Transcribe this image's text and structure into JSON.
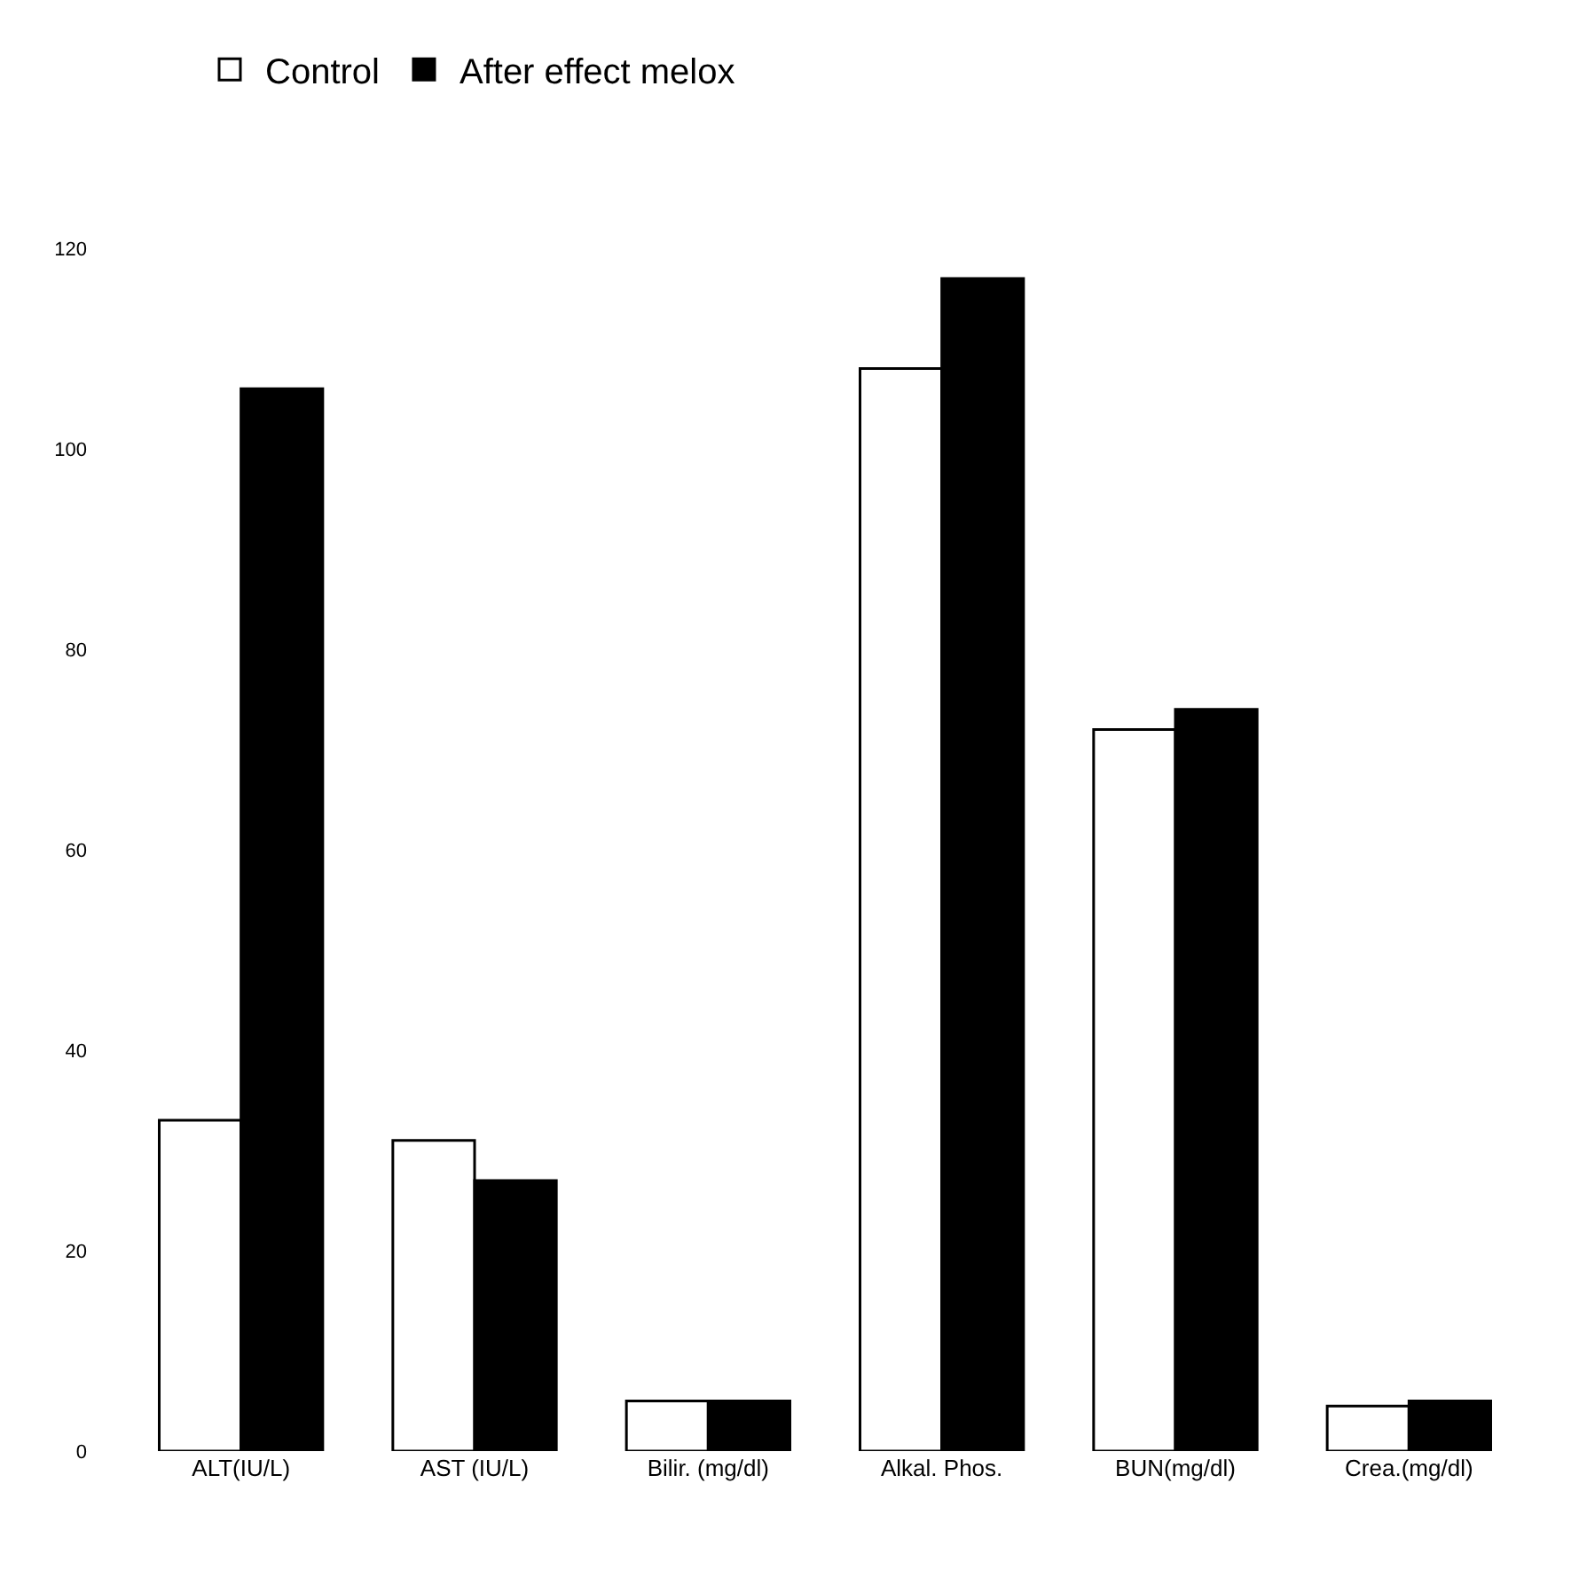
{
  "chart_data": {
    "type": "bar",
    "categories": [
      "ALT(IU/L)",
      "AST (IU/L)",
      "Bilir. (mg/dl)",
      "Alkal. Phos.",
      "BUN(mg/dl)",
      "Crea.(mg/dl)"
    ],
    "series": [
      {
        "name": "Control",
        "color": "#ffffff",
        "values": [
          33,
          31,
          5,
          108,
          72,
          4.5
        ]
      },
      {
        "name": "After effect melox",
        "color": "#000000",
        "values": [
          106,
          27,
          5,
          117,
          74,
          5
        ]
      }
    ],
    "ylim": [
      0,
      120
    ],
    "yticks": [
      0,
      20,
      40,
      60,
      80,
      100,
      120
    ],
    "grid": false,
    "legend": "top left"
  }
}
